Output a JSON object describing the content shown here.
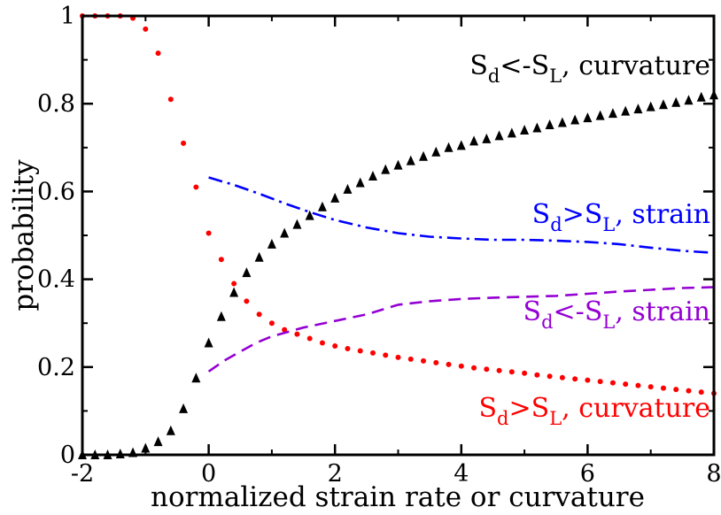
{
  "chart_data": {
    "type": "scatter",
    "xlabel": "normalized strain rate or curvature",
    "ylabel": "probability",
    "xlim": [
      -2,
      8
    ],
    "ylim": [
      0,
      1
    ],
    "xticks": [
      "-2",
      "0",
      "2",
      "4",
      "6",
      "8"
    ],
    "yticks": [
      "0",
      "0.2",
      "0.4",
      "0.6",
      "0.8",
      "1"
    ],
    "grid": false,
    "colors": {
      "curv_neg": "#000000",
      "curv_pos": "#ff0000",
      "strain_pos": "#0000ff",
      "strain_neg": "#9400d3"
    },
    "annotations": [
      {
        "id": "curv_neg",
        "parts": [
          "S",
          "d",
          "<-S",
          "L",
          ", curvature"
        ]
      },
      {
        "id": "strain_pos",
        "parts": [
          "S",
          "d",
          ">S",
          "L",
          ", strain"
        ]
      },
      {
        "id": "strain_neg",
        "parts": [
          "S",
          "d",
          "<-S",
          "L",
          ", strain"
        ]
      },
      {
        "id": "curv_pos",
        "parts": [
          "S",
          "d",
          ">S",
          "L",
          ", curvature"
        ]
      }
    ],
    "series": [
      {
        "id": "curv_neg",
        "marker": "triangle",
        "line": "none",
        "x": [
          -2.0,
          -1.8,
          -1.6,
          -1.4,
          -1.2,
          -1.0,
          -0.8,
          -0.6,
          -0.4,
          -0.2,
          0.0,
          0.2,
          0.4,
          0.6,
          0.8,
          1.0,
          1.2,
          1.4,
          1.6,
          1.8,
          2.0,
          2.2,
          2.4,
          2.6,
          2.8,
          3.0,
          3.2,
          3.4,
          3.6,
          3.8,
          4.0,
          4.2,
          4.4,
          4.6,
          4.8,
          5.0,
          5.2,
          5.4,
          5.6,
          5.8,
          6.0,
          6.2,
          6.4,
          6.6,
          6.8,
          7.0,
          7.2,
          7.4,
          7.6,
          7.8,
          8.0
        ],
        "y": [
          0.0,
          0.0,
          0.0,
          0.002,
          0.005,
          0.015,
          0.03,
          0.055,
          0.105,
          0.175,
          0.255,
          0.315,
          0.37,
          0.415,
          0.45,
          0.48,
          0.505,
          0.525,
          0.545,
          0.565,
          0.585,
          0.605,
          0.62,
          0.635,
          0.65,
          0.66,
          0.67,
          0.68,
          0.69,
          0.7,
          0.705,
          0.715,
          0.72,
          0.727,
          0.733,
          0.74,
          0.745,
          0.752,
          0.757,
          0.763,
          0.768,
          0.773,
          0.778,
          0.783,
          0.788,
          0.793,
          0.798,
          0.803,
          0.808,
          0.815,
          0.82
        ]
      },
      {
        "id": "curv_pos",
        "marker": "dot",
        "line": "none",
        "x": [
          -2.0,
          -1.8,
          -1.6,
          -1.4,
          -1.2,
          -1.0,
          -0.8,
          -0.6,
          -0.4,
          -0.2,
          0.0,
          0.2,
          0.4,
          0.6,
          0.8,
          1.0,
          1.2,
          1.4,
          1.6,
          1.8,
          2.0,
          2.2,
          2.4,
          2.6,
          2.8,
          3.0,
          3.2,
          3.4,
          3.6,
          3.8,
          4.0,
          4.2,
          4.4,
          4.6,
          4.8,
          5.0,
          5.2,
          5.4,
          5.6,
          5.8,
          6.0,
          6.2,
          6.4,
          6.6,
          6.8,
          7.0,
          7.2,
          7.4,
          7.6,
          7.8,
          8.0
        ],
        "y": [
          1.0,
          1.0,
          1.0,
          1.0,
          0.995,
          0.97,
          0.915,
          0.81,
          0.71,
          0.61,
          0.505,
          0.445,
          0.39,
          0.35,
          0.32,
          0.3,
          0.285,
          0.275,
          0.265,
          0.255,
          0.248,
          0.242,
          0.237,
          0.232,
          0.227,
          0.222,
          0.218,
          0.214,
          0.21,
          0.206,
          0.202,
          0.198,
          0.195,
          0.192,
          0.189,
          0.186,
          0.182,
          0.179,
          0.176,
          0.173,
          0.17,
          0.167,
          0.164,
          0.161,
          0.158,
          0.155,
          0.152,
          0.149,
          0.146,
          0.143,
          0.14
        ]
      },
      {
        "id": "strain_pos",
        "marker": "none",
        "line": "dashdot",
        "x": [
          0.0,
          0.4,
          0.8,
          1.2,
          1.6,
          2.0,
          2.5,
          3.0,
          3.5,
          4.0,
          4.5,
          5.0,
          5.5,
          6.0,
          6.5,
          7.0,
          7.5,
          8.0
        ],
        "y": [
          0.632,
          0.615,
          0.595,
          0.573,
          0.553,
          0.535,
          0.518,
          0.505,
          0.497,
          0.493,
          0.49,
          0.49,
          0.488,
          0.485,
          0.48,
          0.472,
          0.465,
          0.46
        ]
      },
      {
        "id": "strain_neg",
        "marker": "none",
        "line": "dashed",
        "x": [
          0.0,
          0.25,
          0.5,
          0.75,
          1.0,
          1.5,
          2.0,
          2.5,
          3.0,
          3.5,
          4.0,
          4.5,
          5.0,
          5.5,
          6.0,
          6.5,
          7.0,
          7.5,
          8.0
        ],
        "y": [
          0.19,
          0.215,
          0.235,
          0.255,
          0.27,
          0.29,
          0.305,
          0.32,
          0.342,
          0.35,
          0.355,
          0.358,
          0.36,
          0.362,
          0.367,
          0.372,
          0.376,
          0.38,
          0.382
        ]
      }
    ]
  }
}
